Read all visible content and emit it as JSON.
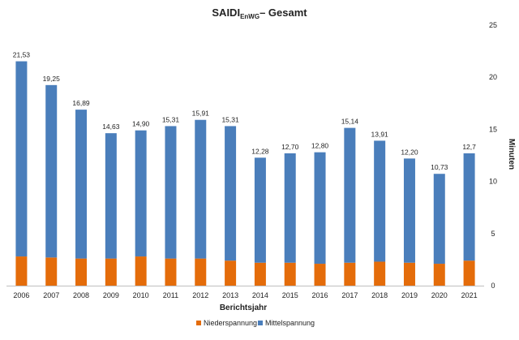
{
  "chart_data": {
    "type": "bar",
    "stacked": true,
    "title": {
      "prefix": "SAIDI",
      "subscript": "EnWG",
      "suffix": "– Gesamt"
    },
    "xlabel": "Berichtsjahr",
    "ylabel": "Minuten",
    "ylim": [
      0,
      25
    ],
    "yticks": [
      0,
      5,
      10,
      15,
      20,
      25
    ],
    "y_axis_side": "right",
    "grid": false,
    "legend_position": "bottom",
    "categories": [
      "2006",
      "2007",
      "2008",
      "2009",
      "2010",
      "2011",
      "2012",
      "2013",
      "2014",
      "2015",
      "2016",
      "2017",
      "2018",
      "2019",
      "2020",
      "2021"
    ],
    "totals": [
      21.53,
      19.25,
      16.89,
      14.63,
      14.9,
      15.31,
      15.91,
      15.31,
      12.28,
      12.7,
      12.8,
      15.14,
      13.91,
      12.2,
      10.73,
      12.7
    ],
    "total_labels": [
      "21,53",
      "19,25",
      "16,89",
      "14,63",
      "14,90",
      "15,31",
      "15,91",
      "15,31",
      "12,28",
      "12,70",
      "12,80",
      "15,14",
      "13,91",
      "12,20",
      "10,73",
      "12,7"
    ],
    "series": [
      {
        "name": "Niederspannung",
        "color": "#E46C0A",
        "values": [
          2.8,
          2.7,
          2.6,
          2.6,
          2.8,
          2.6,
          2.6,
          2.4,
          2.2,
          2.2,
          2.1,
          2.2,
          2.3,
          2.2,
          2.1,
          2.4
        ]
      },
      {
        "name": "Mittelspannung",
        "color": "#4A7EBB",
        "values": [
          18.73,
          16.55,
          14.29,
          12.03,
          12.1,
          12.71,
          13.31,
          12.91,
          10.08,
          10.5,
          10.7,
          12.94,
          11.61,
          10.0,
          8.63,
          10.3
        ]
      }
    ]
  }
}
